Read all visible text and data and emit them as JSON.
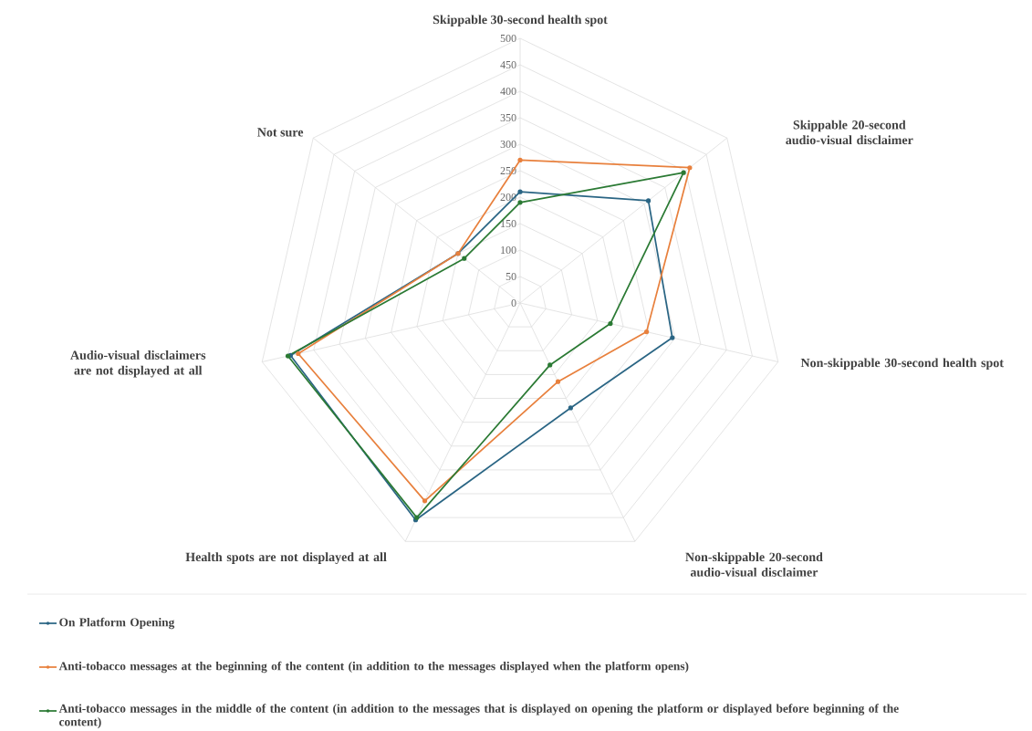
{
  "chart_data": {
    "type": "radar",
    "categories": [
      "Skippable 30-second health spot",
      "Skippable 20-second audio-visual disclaimer",
      "Non-skippable 30-second health spot",
      "Non-skippable 20-second audio-visual disclaimer",
      "Health spots are not displayed at all",
      "Audio-visual disclaimers are not displayed at all",
      "Not sure"
    ],
    "series": [
      {
        "name": "On Platform Opening",
        "color": "#2a6584",
        "values": [
          210,
          310,
          295,
          220,
          455,
          445,
          150
        ]
      },
      {
        "name": "Anti-tobacco messages at the beginning of the content (in addition to the messages displayed when the platform opens)",
        "color": "#e8803d",
        "values": [
          270,
          410,
          245,
          165,
          415,
          430,
          150
        ]
      },
      {
        "name": "Anti-tobacco messages in the middle of the content   (in addition to the messages that is displayed on opening the platform or displayed before beginning of the content)",
        "color": "#2b7a34",
        "values": [
          190,
          395,
          175,
          130,
          450,
          450,
          135
        ]
      }
    ],
    "ylim": [
      0,
      500
    ],
    "yticks": [
      {
        "value": 0,
        "label": "0"
      },
      50,
      100,
      150,
      200,
      250,
      300,
      350,
      400,
      450,
      500
    ],
    "grid": true,
    "legend": "bottom",
    "marker": "circle"
  }
}
